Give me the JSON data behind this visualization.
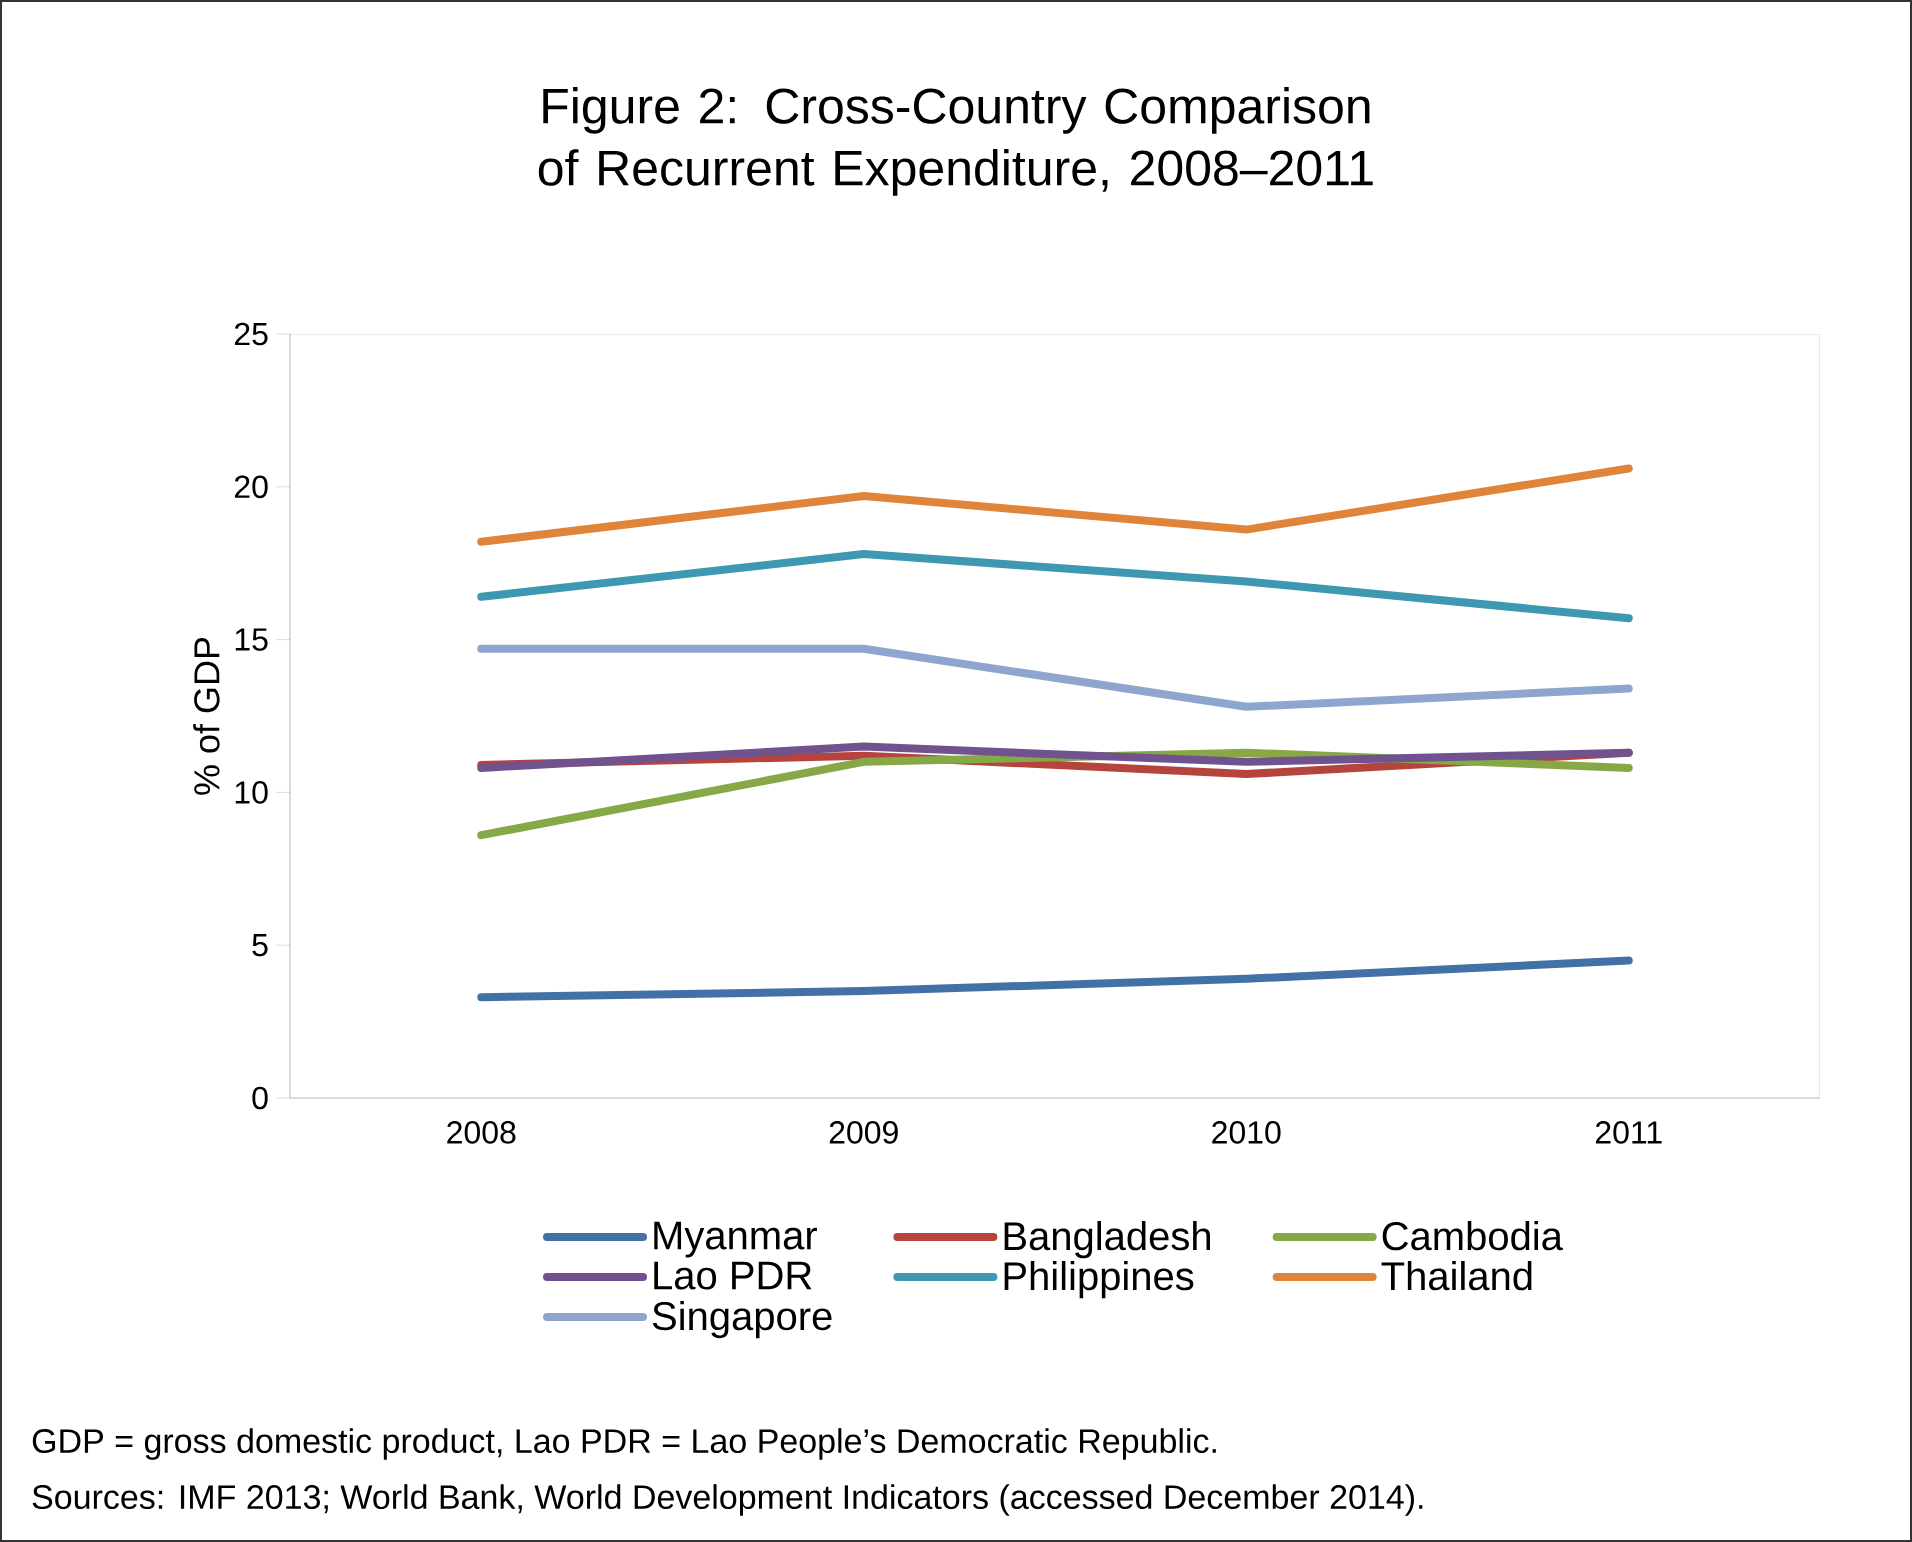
{
  "chart_data": {
    "type": "line",
    "title": "Figure 2: Cross-Country Comparison of Recurrent Expenditure, 2008–2011",
    "ylabel": "% of GDP",
    "categories": [
      "2008",
      "2009",
      "2010",
      "2011"
    ],
    "series": [
      {
        "name": "Myanmar",
        "color": "#4470a8",
        "values": [
          3.3,
          3.5,
          3.9,
          4.5
        ]
      },
      {
        "name": "Bangladesh",
        "color": "#b5443f",
        "values": [
          10.9,
          11.2,
          10.6,
          11.3
        ]
      },
      {
        "name": "Cambodia",
        "color": "#86a846",
        "values": [
          8.6,
          11.0,
          11.3,
          10.8
        ]
      },
      {
        "name": "Lao PDR",
        "color": "#70528f",
        "values": [
          10.8,
          11.5,
          11.0,
          11.3
        ]
      },
      {
        "name": "Philippines",
        "color": "#3d98b0",
        "values": [
          16.4,
          17.8,
          16.9,
          15.7
        ]
      },
      {
        "name": "Thailand",
        "color": "#e0843a",
        "values": [
          18.2,
          19.7,
          18.6,
          20.6
        ]
      },
      {
        "name": "Singapore",
        "color": "#8ea5cf",
        "values": [
          14.7,
          14.7,
          12.8,
          13.4
        ]
      }
    ],
    "ylim": [
      0,
      25
    ],
    "yticks": [
      0,
      5,
      10,
      15,
      20,
      25
    ],
    "legend": "bottom",
    "marker": "none",
    "line_style": "solid",
    "annotations": [
      "GDP = gross domestic product, Lao PDR = Lao People’s Democratic Republic.",
      "Sources: IMF 2013; World Bank, World Development Indicators (accessed December 2014)."
    ]
  }
}
